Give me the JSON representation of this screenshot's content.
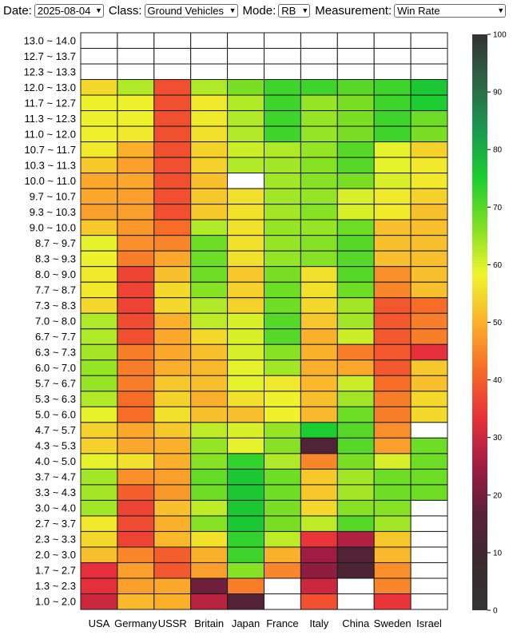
{
  "controls": {
    "date_label": "Date:",
    "date_value": "2025-08-04",
    "class_label": "Class:",
    "class_value": "Ground Vehicles",
    "mode_label": "Mode:",
    "mode_value": "RB",
    "measurement_label": "Measurement:",
    "measurement_value": "Win Rate"
  },
  "chart_data": {
    "type": "heatmap",
    "title": "",
    "xlabel": "",
    "ylabel": "",
    "x": [
      "USA",
      "Germany",
      "USSR",
      "Britain",
      "Japan",
      "France",
      "Italy",
      "China",
      "Sweden",
      "Israel"
    ],
    "y": [
      "13.0 ~ 14.0",
      "12.7 ~ 13.7",
      "12.3 ~ 13.3",
      "12.0 ~ 13.0",
      "11.7 ~ 12.7",
      "11.3 ~ 12.3",
      "11.0 ~ 12.0",
      "10.7 ~ 11.7",
      "10.3 ~ 11.3",
      "10.0 ~ 11.0",
      "9.7 ~ 10.7",
      "9.3 ~ 10.3",
      "9.0 ~ 10.0",
      "8.7 ~ 9.7",
      "8.3 ~ 9.3",
      "8.0 ~ 9.0",
      "7.7 ~ 8.7",
      "7.3 ~ 8.3",
      "7.0 ~ 8.0",
      "6.7 ~ 7.7",
      "6.3 ~ 7.3",
      "6.0 ~ 7.0",
      "5.7 ~ 6.7",
      "5.3 ~ 6.3",
      "5.0 ~ 6.0",
      "4.7 ~ 5.7",
      "4.3 ~ 5.3",
      "4.0 ~ 5.0",
      "3.7 ~ 4.7",
      "3.3 ~ 4.3",
      "3.0 ~ 4.0",
      "2.7 ~ 3.7",
      "2.3 ~ 3.3",
      "2.0 ~ 3.0",
      "1.7 ~ 2.7",
      "1.3 ~ 2.3",
      "1.0 ~ 2.0"
    ],
    "values": [
      [
        null,
        null,
        null,
        null,
        null,
        null,
        null,
        null,
        null,
        null
      ],
      [
        null,
        null,
        null,
        null,
        null,
        null,
        null,
        null,
        null,
        null
      ],
      [
        null,
        null,
        null,
        null,
        null,
        null,
        null,
        null,
        null,
        null
      ],
      [
        55,
        63,
        38,
        63,
        67,
        72,
        72,
        70,
        72,
        76
      ],
      [
        58,
        58,
        38,
        57,
        63,
        72,
        65,
        67,
        72,
        75
      ],
      [
        58,
        58,
        38,
        57,
        63,
        72,
        65,
        67,
        72,
        68
      ],
      [
        58,
        57,
        38,
        56,
        63,
        72,
        65,
        67,
        72,
        67
      ],
      [
        57,
        50,
        38,
        54,
        61,
        63,
        65,
        70,
        59,
        54
      ],
      [
        53,
        48,
        38,
        54,
        63,
        64,
        66,
        70,
        59,
        57
      ],
      [
        49,
        49,
        38,
        52,
        null,
        64,
        66,
        67,
        60,
        57
      ],
      [
        49,
        48,
        38,
        53,
        56,
        64,
        65,
        60,
        57,
        54
      ],
      [
        48,
        48,
        38,
        53,
        56,
        64,
        66,
        60,
        57,
        52
      ],
      [
        53,
        47,
        42,
        63,
        56,
        65,
        65,
        68,
        52,
        52
      ],
      [
        59,
        46,
        45,
        68,
        56,
        65,
        66,
        70,
        52,
        52
      ],
      [
        58,
        44,
        49,
        68,
        56,
        65,
        66,
        70,
        52,
        52
      ],
      [
        57,
        36,
        52,
        68,
        53,
        67,
        56,
        70,
        46,
        52
      ],
      [
        57,
        36,
        55,
        66,
        54,
        68,
        56,
        68,
        45,
        52
      ],
      [
        55,
        36,
        55,
        63,
        54,
        68,
        55,
        64,
        39,
        42
      ],
      [
        63,
        37,
        50,
        62,
        60,
        70,
        53,
        64,
        39,
        44
      ],
      [
        63,
        38,
        49,
        55,
        60,
        70,
        50,
        61,
        39,
        44
      ],
      [
        64,
        44,
        49,
        52,
        60,
        66,
        50,
        44,
        39,
        33
      ],
      [
        65,
        44,
        50,
        51,
        59,
        64,
        50,
        49,
        39,
        53
      ],
      [
        65,
        44,
        53,
        52,
        59,
        57,
        51,
        61,
        42,
        52
      ],
      [
        63,
        42,
        54,
        50,
        56,
        58,
        52,
        64,
        44,
        55
      ],
      [
        59,
        42,
        56,
        52,
        52,
        58,
        51,
        68,
        44,
        55
      ],
      [
        54,
        49,
        53,
        62,
        60,
        65,
        75,
        70,
        46,
        null
      ],
      [
        54,
        49,
        50,
        65,
        59,
        66,
        14,
        70,
        48,
        68
      ],
      [
        59,
        56,
        50,
        66,
        73,
        63,
        45,
        67,
        60,
        68
      ],
      [
        64,
        46,
        48,
        69,
        76,
        68,
        53,
        64,
        68,
        68
      ],
      [
        64,
        40,
        47,
        68,
        76,
        68,
        53,
        64,
        68,
        68
      ],
      [
        64,
        36,
        52,
        62,
        76,
        67,
        55,
        66,
        66,
        null
      ],
      [
        57,
        37,
        50,
        66,
        76,
        67,
        62,
        70,
        64,
        null
      ],
      [
        55,
        36,
        51,
        56,
        73,
        62,
        34,
        27,
        53,
        null
      ],
      [
        52,
        45,
        40,
        50,
        72,
        50,
        25,
        15,
        51,
        null
      ],
      [
        33,
        48,
        39,
        48,
        66,
        45,
        23,
        13,
        46,
        null
      ],
      [
        33,
        48,
        49,
        19,
        44,
        null,
        30,
        null,
        45,
        null
      ],
      [
        30,
        51,
        50,
        28,
        15,
        null,
        38,
        null,
        34,
        null
      ]
    ],
    "colorbar": {
      "range": [
        0,
        100
      ],
      "ticks": [
        "0",
        "10",
        "20",
        "30",
        "40",
        "50",
        "60",
        "70",
        "80",
        "90",
        "100"
      ],
      "stops": [
        "#333333",
        "#3a2a2e",
        "#5a2038",
        "#a01c44",
        "#e8303a",
        "#f76a28",
        "#fbb02c",
        "#eff42c",
        "#7ee024",
        "#1ccd30",
        "#1a9a50",
        "#2e6544",
        "#333333"
      ]
    },
    "grid": true,
    "legend": "right"
  }
}
